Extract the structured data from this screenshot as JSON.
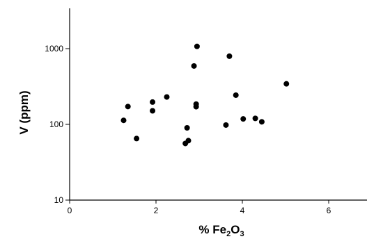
{
  "chart_data": {
    "type": "scatter",
    "xlabel": {
      "prefix": "% Fe",
      "sub1": "2",
      "mid": "O",
      "sub2": "3"
    },
    "ylabel": "V (ppm)",
    "xlim": [
      0,
      7
    ],
    "ylim": [
      10,
      4000
    ],
    "yscale": "log",
    "grid": false,
    "x_ticks": [
      0,
      2,
      4,
      6
    ],
    "x_tick_labels": [
      "0",
      "2",
      "4",
      "6"
    ],
    "y_ticks": [
      10,
      100,
      1000
    ],
    "y_tick_labels": [
      "10",
      "100",
      "1000"
    ],
    "marker_color": "#000000",
    "points": [
      {
        "x": 1.25,
        "y": 113
      },
      {
        "x": 1.35,
        "y": 172
      },
      {
        "x": 1.55,
        "y": 65
      },
      {
        "x": 1.92,
        "y": 197
      },
      {
        "x": 1.92,
        "y": 151
      },
      {
        "x": 2.25,
        "y": 230
      },
      {
        "x": 2.68,
        "y": 56
      },
      {
        "x": 2.72,
        "y": 90
      },
      {
        "x": 2.75,
        "y": 61
      },
      {
        "x": 2.88,
        "y": 590
      },
      {
        "x": 2.95,
        "y": 1070
      },
      {
        "x": 2.93,
        "y": 185
      },
      {
        "x": 2.93,
        "y": 171
      },
      {
        "x": 3.62,
        "y": 98
      },
      {
        "x": 3.7,
        "y": 795
      },
      {
        "x": 3.85,
        "y": 243
      },
      {
        "x": 4.02,
        "y": 118
      },
      {
        "x": 4.3,
        "y": 120
      },
      {
        "x": 4.45,
        "y": 108
      },
      {
        "x": 5.02,
        "y": 343
      }
    ]
  }
}
